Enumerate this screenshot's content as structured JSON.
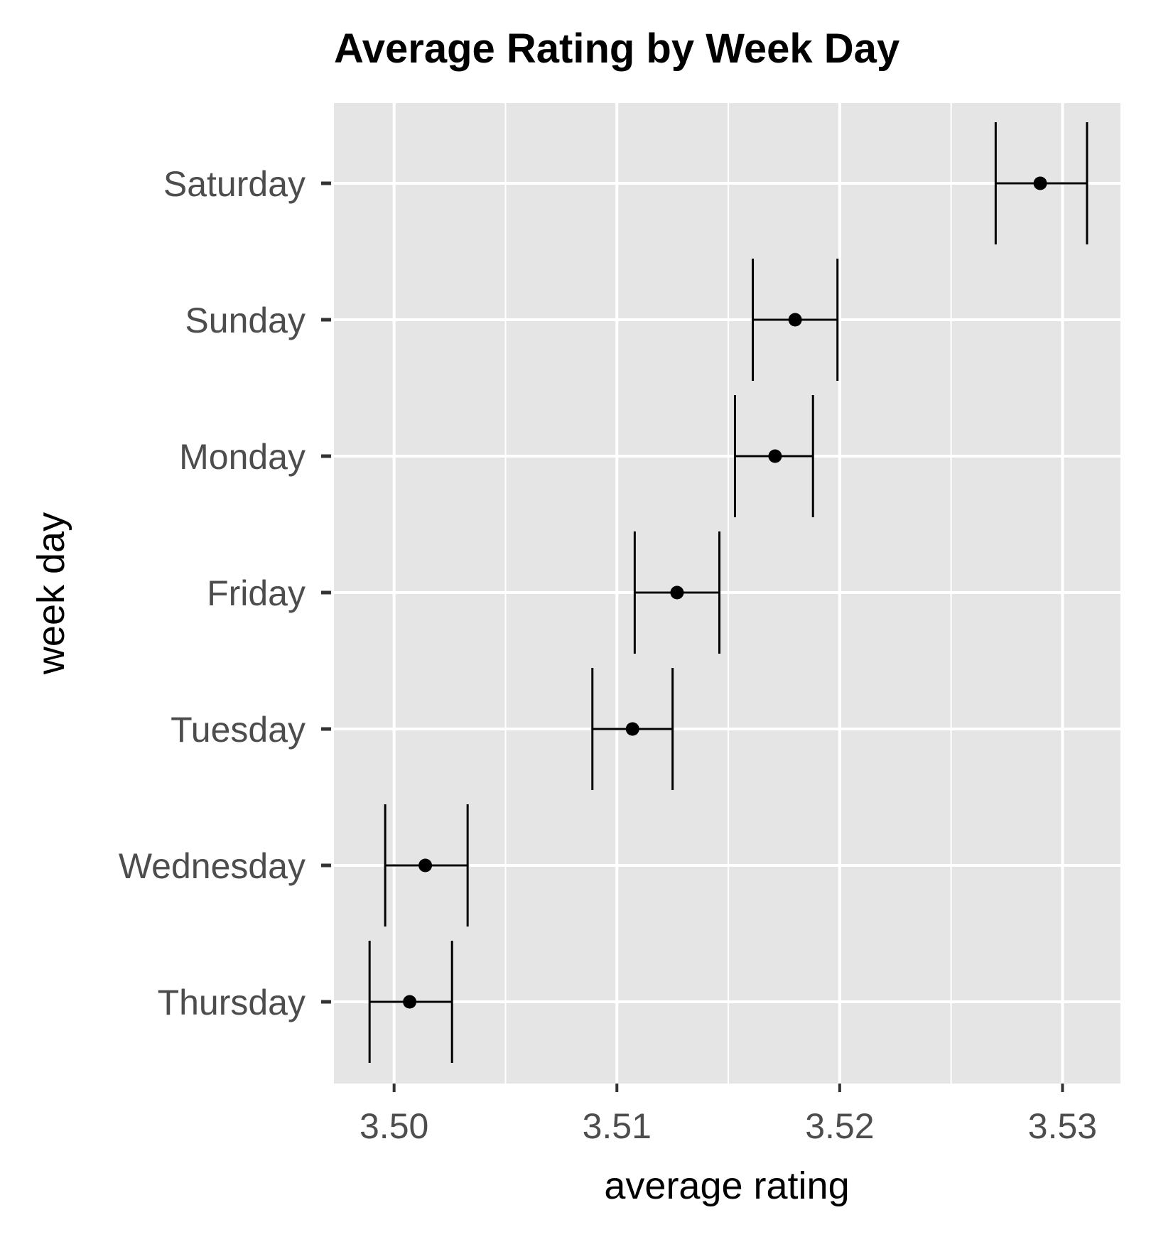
{
  "chart_data": {
    "type": "errorbar",
    "title": "Average Rating by Week Day",
    "xlabel": "average rating",
    "ylabel": "week day",
    "xlim": [
      3.4973,
      3.5326
    ],
    "x_ticks": [
      3.5,
      3.51,
      3.52,
      3.53
    ],
    "x_tick_labels": [
      "3.50",
      "3.51",
      "3.52",
      "3.53"
    ],
    "grid": true,
    "categories": [
      "Saturday",
      "Sunday",
      "Monday",
      "Friday",
      "Tuesday",
      "Wednesday",
      "Thursday"
    ],
    "values": [
      3.529,
      3.518,
      3.5171,
      3.5127,
      3.5107,
      3.5014,
      3.5007
    ],
    "lower": [
      3.527,
      3.5161,
      3.5153,
      3.5108,
      3.5089,
      3.4996,
      3.4989
    ],
    "upper": [
      3.5311,
      3.5199,
      3.5188,
      3.5146,
      3.5125,
      3.5033,
      3.5026
    ]
  },
  "colors": {
    "panel_background": "#e5e5e5",
    "grid": "#ffffff",
    "mark": "#000000",
    "tick_text": "#4d4d4d",
    "tick_mark": "#333333"
  }
}
